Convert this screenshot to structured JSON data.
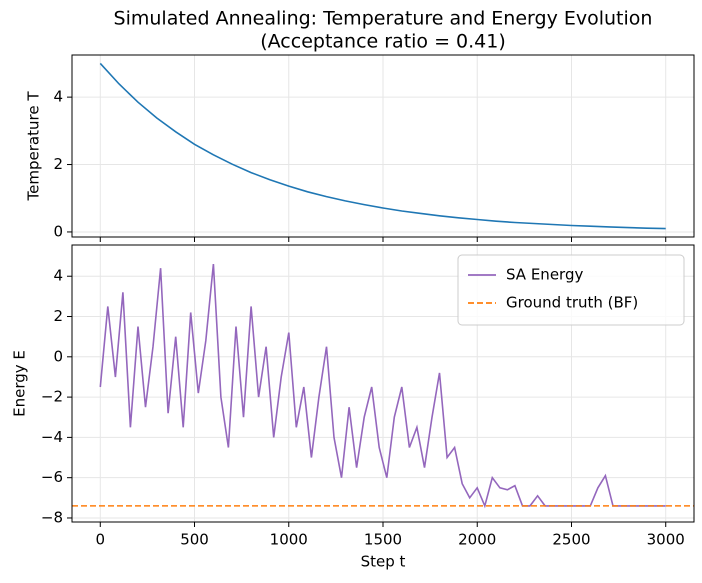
{
  "chart_data": [
    {
      "type": "line",
      "title": "Simulated Annealing: Temperature and Energy Evolution",
      "subtitle": "(Acceptance ratio = 0.41)",
      "ylabel": "Temperature T",
      "x": [
        0,
        100,
        200,
        300,
        400,
        500,
        600,
        700,
        800,
        900,
        1000,
        1100,
        1200,
        1300,
        1400,
        1500,
        1600,
        1700,
        1800,
        1900,
        2000,
        2100,
        2200,
        2300,
        2400,
        2500,
        2600,
        2700,
        2800,
        2900,
        3000
      ],
      "series": [
        {
          "color": "#1f77b4",
          "values": [
            5,
            4.39,
            3.85,
            3.38,
            2.97,
            2.6,
            2.29,
            2.01,
            1.76,
            1.55,
            1.36,
            1.19,
            1.05,
            0.92,
            0.81,
            0.71,
            0.62,
            0.55,
            0.48,
            0.42,
            0.37,
            0.32,
            0.28,
            0.25,
            0.22,
            0.19,
            0.17,
            0.15,
            0.13,
            0.11,
            0.1
          ]
        }
      ],
      "xlim": [
        -150,
        3150
      ],
      "xticks": [
        0,
        500,
        1000,
        1500,
        2000,
        2500,
        3000
      ],
      "show_xtick_labels": false,
      "ylim": [
        -0.15,
        5.25
      ],
      "yticks": [
        0,
        2,
        4
      ],
      "grid": true
    },
    {
      "type": "line",
      "xlabel": "Step t",
      "ylabel": "Energy E",
      "x": [
        0,
        40,
        80,
        120,
        160,
        200,
        240,
        280,
        320,
        360,
        400,
        440,
        480,
        520,
        560,
        600,
        640,
        680,
        720,
        760,
        800,
        840,
        880,
        920,
        960,
        1000,
        1040,
        1080,
        1120,
        1160,
        1200,
        1240,
        1280,
        1320,
        1360,
        1400,
        1440,
        1480,
        1520,
        1560,
        1600,
        1640,
        1680,
        1720,
        1760,
        1800,
        1840,
        1880,
        1920,
        1960,
        2000,
        2040,
        2080,
        2120,
        2160,
        2200,
        2240,
        2280,
        2320,
        2360,
        2400,
        2440,
        2480,
        2520,
        2560,
        2600,
        2640,
        2680,
        2720,
        2760,
        2800,
        2840,
        2880,
        2920,
        2960,
        3000
      ],
      "series": [
        {
          "name": "SA Energy",
          "color": "#9467bd",
          "values": [
            -1.5,
            2.5,
            -1,
            3.2,
            -3.5,
            1.5,
            -2.5,
            0.5,
            4.4,
            -2.8,
            1,
            -3.5,
            2.2,
            -1.8,
            0.8,
            4.6,
            -2,
            -4.5,
            1.5,
            -3,
            2.5,
            -2,
            0.5,
            -4,
            -1,
            1.2,
            -3.5,
            -1.5,
            -5,
            -2,
            0.5,
            -4,
            -6,
            -2.5,
            -5.5,
            -3,
            -1.5,
            -4.5,
            -6,
            -3,
            -1.5,
            -4.5,
            -3.5,
            -5.5,
            -3,
            -0.8,
            -5,
            -4.5,
            -6.3,
            -7,
            -6.5,
            -7.4,
            -6,
            -6.5,
            -6.6,
            -6.4,
            -7.4,
            -7.4,
            -6.9,
            -7.4,
            -7.4,
            -7.4,
            -7.4,
            -7.4,
            -7.4,
            -7.4,
            -6.5,
            -5.9,
            -7.4,
            -7.4,
            -7.4,
            -7.4,
            -7.4,
            -7.4,
            -7.4,
            -7.4
          ]
        }
      ],
      "reference_lines": [
        {
          "name": "Ground truth (BF)",
          "color": "#ff7f0e",
          "value": -7.4,
          "style": "dashed"
        }
      ],
      "xlim": [
        -150,
        3150
      ],
      "xticks": [
        0,
        500,
        1000,
        1500,
        2000,
        2500,
        3000
      ],
      "ylim": [
        -8.2,
        5.55
      ],
      "yticks": [
        {
          "value": -8,
          "label": "−8"
        },
        {
          "value": -6,
          "label": "−6"
        },
        {
          "value": -4,
          "label": "−4"
        },
        {
          "value": -2,
          "label": "−2"
        },
        0,
        2,
        4
      ],
      "grid": true,
      "legend": "upper right"
    }
  ]
}
